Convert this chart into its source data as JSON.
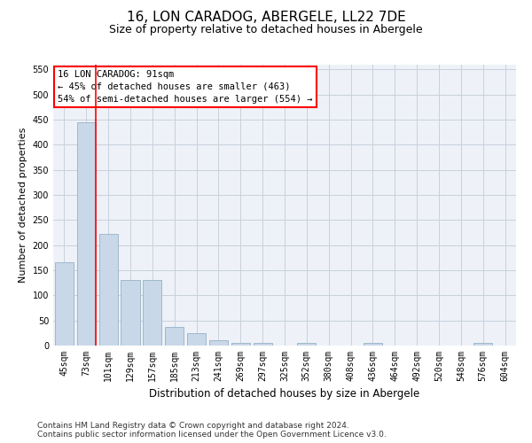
{
  "title": "16, LON CARADOG, ABERGELE, LL22 7DE",
  "subtitle": "Size of property relative to detached houses in Abergele",
  "xlabel": "Distribution of detached houses by size in Abergele",
  "ylabel": "Number of detached properties",
  "footer_line1": "Contains HM Land Registry data © Crown copyright and database right 2024.",
  "footer_line2": "Contains public sector information licensed under the Open Government Licence v3.0.",
  "annotation_title": "16 LON CARADOG: 91sqm",
  "annotation_line1": "← 45% of detached houses are smaller (463)",
  "annotation_line2": "54% of semi-detached houses are larger (554) →",
  "categories": [
    "45sqm",
    "73sqm",
    "101sqm",
    "129sqm",
    "157sqm",
    "185sqm",
    "213sqm",
    "241sqm",
    "269sqm",
    "297sqm",
    "325sqm",
    "352sqm",
    "380sqm",
    "408sqm",
    "436sqm",
    "464sqm",
    "492sqm",
    "520sqm",
    "548sqm",
    "576sqm",
    "604sqm"
  ],
  "values": [
    165,
    445,
    222,
    130,
    130,
    37,
    25,
    10,
    6,
    6,
    0,
    5,
    0,
    0,
    5,
    0,
    0,
    0,
    0,
    5,
    0
  ],
  "bar_color": "#c8d8e8",
  "bar_edge_color": "#a0b8cc",
  "grid_color": "#c8d0dc",
  "background_color": "#eef2f8",
  "ylim": [
    0,
    560
  ],
  "yticks": [
    0,
    50,
    100,
    150,
    200,
    250,
    300,
    350,
    400,
    450,
    500,
    550
  ],
  "title_fontsize": 11,
  "subtitle_fontsize": 9,
  "xlabel_fontsize": 8.5,
  "ylabel_fontsize": 8,
  "tick_fontsize": 7,
  "annotation_fontsize": 7.5,
  "footer_fontsize": 6.5
}
